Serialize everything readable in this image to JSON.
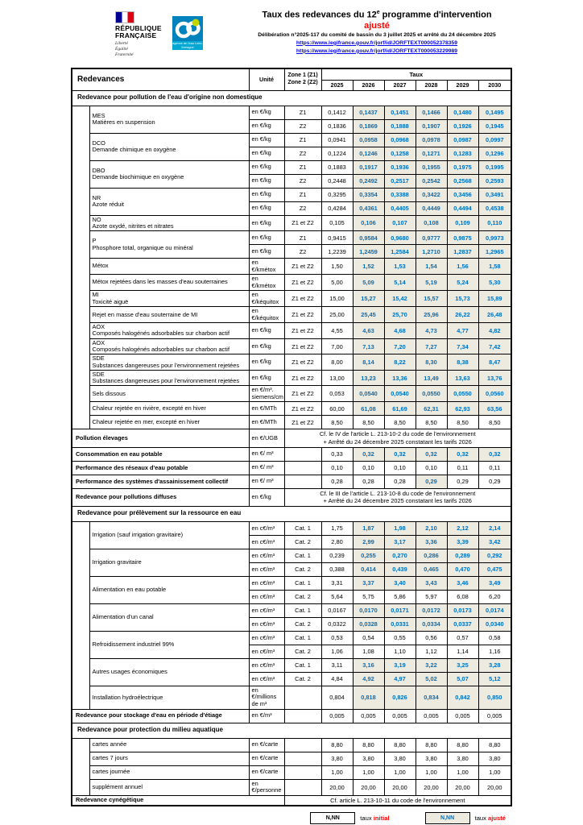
{
  "header": {
    "rf_logo": {
      "line1": "RÉPUBLIQUE",
      "line2": "FRANÇAISE",
      "motto": [
        "Liberté",
        "Égalité",
        "Fraternité"
      ]
    },
    "agency_logo": {
      "name": "agence de l'eau Loire-Bretagne"
    },
    "title_main": "Taux des redevances du 12",
    "title_sup": "e",
    "title_tail": " programme d'intervention",
    "subtitle": "ajusté",
    "deliberation": "Délibération n°2025-117 du comité de bassin du 3 juillet 2025 et arrêté du 24 décembre 2025",
    "links": [
      "https://www.legifrance.gouv.fr/jorf/id/JORFTEXT000052378359",
      "https://www.legifrance.gouv.fr/jorf/id/JORFTEXT000053229989"
    ]
  },
  "table": {
    "col_redevances": "Redevances",
    "col_unite": "Unité",
    "col_zone_line1": "Zone 1 (Z1)",
    "col_zone_line2": "Zone 2 (Z2)",
    "col_taux": "Taux",
    "years": [
      "2025",
      "2026",
      "2027",
      "2028",
      "2029",
      "2030"
    ],
    "rows": [
      {
        "type": "section",
        "label": "Redevance pour pollution de l'eau d'origine non domestique"
      },
      {
        "type": "group",
        "label": "MES",
        "sublabel": "Matières en suspension",
        "rows": [
          {
            "unit": "en €/kg",
            "zone": "Z1",
            "base": "0,1412",
            "values": [
              "0,1437",
              "0,1451",
              "0,1466",
              "0,1480",
              "0,1495"
            ],
            "adj": true
          },
          {
            "unit": "en €/kg",
            "zone": "Z2",
            "base": "0,1836",
            "values": [
              "0,1869",
              "0,1888",
              "0,1907",
              "0,1926",
              "0,1945"
            ],
            "adj": true
          }
        ]
      },
      {
        "type": "group",
        "label": "DCO",
        "sublabel": "Demande chimique en oxygène",
        "rows": [
          {
            "unit": "en €/kg",
            "zone": "Z1",
            "base": "0,0941",
            "values": [
              "0,0958",
              "0,0968",
              "0,0978",
              "0,0987",
              "0,0997"
            ],
            "adj": true
          },
          {
            "unit": "en €/kg",
            "zone": "Z2",
            "base": "0,1224",
            "values": [
              "0,1246",
              "0,1258",
              "0,1271",
              "0,1283",
              "0,1296"
            ],
            "adj": true
          }
        ]
      },
      {
        "type": "group",
        "label": "DBO",
        "sublabel": "Demande biochimique en oxygène",
        "rows": [
          {
            "unit": "en €/kg",
            "zone": "Z1",
            "base": "0,1883",
            "values": [
              "0,1917",
              "0,1936",
              "0,1955",
              "0,1975",
              "0,1995"
            ],
            "adj": true
          },
          {
            "unit": "en €/kg",
            "zone": "Z2",
            "base": "0,2448",
            "values": [
              "0,2492",
              "0,2517",
              "0,2542",
              "0,2568",
              "0,2593"
            ],
            "adj": true
          }
        ]
      },
      {
        "type": "group",
        "label": "NR",
        "sublabel": "Azote réduit",
        "rows": [
          {
            "unit": "en €/kg",
            "zone": "Z1",
            "base": "0,3295",
            "values": [
              "0,3354",
              "0,3388",
              "0,3422",
              "0,3456",
              "0,3491"
            ],
            "adj": true
          },
          {
            "unit": "en €/kg",
            "zone": "Z2",
            "base": "0,4284",
            "values": [
              "0,4361",
              "0,4405",
              "0,4449",
              "0,4494",
              "0,4538"
            ],
            "adj": true
          }
        ]
      },
      {
        "type": "group",
        "label": "NO",
        "sublabel": "Azote oxydé, nitrites et nitrates",
        "rows": [
          {
            "unit": "en €/kg",
            "zone": "Z1 et Z2",
            "base": "0,105",
            "values": [
              "0,106",
              "0,107",
              "0,108",
              "0,109",
              "0,110"
            ],
            "adj": true
          }
        ]
      },
      {
        "type": "group",
        "label": "P",
        "sublabel": "Phosphore total, organique ou minéral",
        "rows": [
          {
            "unit": "en €/kg",
            "zone": "Z1",
            "base": "0,9415",
            "values": [
              "0,9584",
              "0,9680",
              "0,9777",
              "0,9875",
              "0,9973"
            ],
            "adj": true
          },
          {
            "unit": "en €/kg",
            "zone": "Z2",
            "base": "1,2239",
            "values": [
              "1,2459",
              "1,2584",
              "1,2710",
              "1,2837",
              "1,2965"
            ],
            "adj": true
          }
        ]
      },
      {
        "type": "group",
        "label": "Métox",
        "rows": [
          {
            "unit": "en €/kmétox",
            "zone": "Z1 et Z2",
            "base": "1,50",
            "values": [
              "1,52",
              "1,53",
              "1,54",
              "1,56",
              "1,58"
            ],
            "adj": true
          }
        ]
      },
      {
        "type": "group",
        "label": "Métox rejetées dans les masses d'eau souterraines",
        "rows": [
          {
            "unit": "en €/kmétox",
            "zone": "Z1 et Z2",
            "base": "5,00",
            "values": [
              "5,09",
              "5,14",
              "5,19",
              "5,24",
              "5,30"
            ],
            "adj": true
          }
        ]
      },
      {
        "type": "group",
        "label": "MI",
        "sublabel": "Toxicité aiguë",
        "rows": [
          {
            "unit": "en €/kéquitox",
            "zone": "Z1 et Z2",
            "base": "15,00",
            "values": [
              "15,27",
              "15,42",
              "15,57",
              "15,73",
              "15,89"
            ],
            "adj": true
          }
        ]
      },
      {
        "type": "group",
        "label": "Rejet en masse d'eau souterraine de MI",
        "rows": [
          {
            "unit": "en €/kéquitox",
            "zone": "Z1 et Z2",
            "base": "25,00",
            "values": [
              "25,45",
              "25,70",
              "25,96",
              "26,22",
              "26,48"
            ],
            "adj": true
          }
        ]
      },
      {
        "type": "group",
        "label": "AOX",
        "sublabel": "Composés halogénés adsorbables sur charbon actif",
        "rows": [
          {
            "unit": "en €/kg",
            "zone": "Z1 et Z2",
            "base": "4,55",
            "values": [
              "4,63",
              "4,68",
              "4,73",
              "4,77",
              "4,82"
            ],
            "adj": true
          }
        ]
      },
      {
        "type": "group",
        "label": "AOX",
        "sublabel": "Composés halogénés adsorbables sur charbon actif",
        "rows": [
          {
            "unit": "en €/kg",
            "zone": "Z1 et Z2",
            "base": "7,00",
            "values": [
              "7,13",
              "7,20",
              "7,27",
              "7,34",
              "7,42"
            ],
            "adj": true
          }
        ]
      },
      {
        "type": "group",
        "label": "SDE",
        "sublabel": "Substances dangereuses pour l'environnement rejetées",
        "rows": [
          {
            "unit": "en €/kg",
            "zone": "Z1 et Z2",
            "base": "8,00",
            "values": [
              "8,14",
              "8,22",
              "8,30",
              "8,38",
              "8,47"
            ],
            "adj": true
          }
        ]
      },
      {
        "type": "group",
        "label": "SDE",
        "sublabel": "Substances dangereuses pour l'environnement rejetées",
        "rows": [
          {
            "unit": "en €/kg",
            "zone": "Z1 et Z2",
            "base": "13,00",
            "values": [
              "13,23",
              "13,36",
              "13,49",
              "13,63",
              "13,76"
            ],
            "adj": true
          }
        ]
      },
      {
        "type": "group",
        "label": "Sels dissous",
        "rows": [
          {
            "unit": "en €/m³.\nsiemens/cm",
            "zone": "Z1 et Z2",
            "base": "0,053",
            "values": [
              "0,0540",
              "0,0540",
              "0,0550",
              "0,0550",
              "0,0560"
            ],
            "adj": true
          }
        ]
      },
      {
        "type": "group",
        "label": "Chaleur rejetée en rivière, excepté en hiver",
        "rows": [
          {
            "unit": "en €/MTh",
            "zone": "Z1 et Z2",
            "base": "60,00",
            "values": [
              "61,08",
              "61,69",
              "62,31",
              "62,93",
              "63,56"
            ],
            "adj": true
          }
        ]
      },
      {
        "type": "group",
        "label": "Chaleur rejetée en mer, excepté en hiver",
        "rows": [
          {
            "unit": "en €/MTh",
            "zone": "Z1 et Z2",
            "base": "8,50",
            "values": [
              "8,50",
              "8,50",
              "8,50",
              "8,50",
              "8,50"
            ],
            "adj": false
          }
        ]
      },
      {
        "type": "bold",
        "label": "Pollution élevages",
        "unit": "en €/UGB",
        "note": [
          "Cf. le IV de l'article L. 213-10-2 du code de l'environnement",
          "+ Arrêté du 24 décembre 2025 constatant les tarifs 2026"
        ]
      },
      {
        "type": "bold",
        "label": "Consommation en eau potable",
        "unit": "en €/ m³",
        "zone": "",
        "base": "0,33",
        "values": [
          "0,32",
          "0,32",
          "0,32",
          "0,32",
          "0,32"
        ],
        "adj": true
      },
      {
        "type": "bold",
        "label": "Performance des réseaux d'eau potable",
        "unit": "en €/ m³",
        "zone": "",
        "base": "0,10",
        "values": [
          "0,10",
          "0,10",
          "0,10",
          "0,11",
          "0,11"
        ],
        "adj": false
      },
      {
        "type": "bold",
        "label": "Performance des systèmes d'assainissement collectif",
        "unit": "en €/ m³",
        "zone": "",
        "base": "0,28",
        "values": [
          "0,28",
          "0,28",
          "0,29",
          "0,29",
          "0,29"
        ],
        "adj": [
          2
        ]
      },
      {
        "type": "bold",
        "label": "Redevance pour pollutions diffuses",
        "unit": "en €/kg",
        "note": [
          "Cf. le III de l'article L. 213-10-8 du code de l'environnement",
          "+ Arrêté du 24 décembre 2025 constatant les tarifs 2026"
        ]
      },
      {
        "type": "section",
        "label": "Redevance pour prélèvement sur la ressource en eau"
      },
      {
        "type": "group",
        "label": "Irrigation (sauf irrigation gravitaire)",
        "rows": [
          {
            "unit": "en c€/m³",
            "zone": "Cat. 1",
            "base": "1,75",
            "values": [
              "1,87",
              "1,98",
              "2,10",
              "2,12",
              "2,14"
            ],
            "adj": true
          },
          {
            "unit": "en c€/m³",
            "zone": "Cat. 2",
            "base": "2,80",
            "values": [
              "2,99",
              "3,17",
              "3,36",
              "3,39",
              "3,42"
            ],
            "adj": true
          }
        ]
      },
      {
        "type": "group",
        "label": "Irrigation gravitaire",
        "rows": [
          {
            "unit": "en c€/m³",
            "zone": "Cat. 1",
            "base": "0,239",
            "values": [
              "0,255",
              "0,270",
              "0,286",
              "0,289",
              "0,292"
            ],
            "adj": true
          },
          {
            "unit": "en c€/m³",
            "zone": "Cat. 2",
            "base": "0,388",
            "values": [
              "0,414",
              "0,439",
              "0,465",
              "0,470",
              "0,475"
            ],
            "adj": true
          }
        ]
      },
      {
        "type": "group",
        "label": "Alimentation en eau potable",
        "rows": [
          {
            "unit": "en c€/m³",
            "zone": "Cat. 1",
            "base": "3,31",
            "values": [
              "3,37",
              "3,40",
              "3,43",
              "3,46",
              "3,49"
            ],
            "adj": true
          },
          {
            "unit": "en c€/m³",
            "zone": "Cat. 2",
            "base": "5,64",
            "values": [
              "5,75",
              "5,86",
              "5,97",
              "6,08",
              "6,20"
            ],
            "adj": false
          }
        ]
      },
      {
        "type": "group",
        "label": "Alimentation d'un canal",
        "rows": [
          {
            "unit": "en c€/m³",
            "zone": "Cat. 1",
            "base": "0,0167",
            "values": [
              "0,0170",
              "0,0171",
              "0,0172",
              "0,0173",
              "0,0174"
            ],
            "adj": true
          },
          {
            "unit": "en c€/m³",
            "zone": "Cat. 2",
            "base": "0,0322",
            "values": [
              "0,0328",
              "0,0331",
              "0,0334",
              "0,0337",
              "0,0340"
            ],
            "adj": true
          }
        ]
      },
      {
        "type": "group",
        "label": "Refroidissement industriel 99%",
        "rows": [
          {
            "unit": "en c€/m³",
            "zone": "Cat. 1",
            "base": "0,53",
            "values": [
              "0,54",
              "0,55",
              "0,56",
              "0,57",
              "0,58"
            ],
            "adj": false
          },
          {
            "unit": "en c€/m³",
            "zone": "Cat. 2",
            "base": "1,06",
            "values": [
              "1,08",
              "1,10",
              "1,12",
              "1,14",
              "1,16"
            ],
            "adj": false
          }
        ]
      },
      {
        "type": "group",
        "label": "Autres usages économiques",
        "rows": [
          {
            "unit": "en c€/m³",
            "zone": "Cat. 1",
            "base": "3,11",
            "values": [
              "3,16",
              "3,19",
              "3,22",
              "3,25",
              "3,28"
            ],
            "adj": true
          },
          {
            "unit": "en c€/m³",
            "zone": "Cat. 2",
            "base": "4,84",
            "values": [
              "4,92",
              "4,97",
              "5,02",
              "5,07",
              "5,12"
            ],
            "adj": true
          }
        ]
      },
      {
        "type": "group",
        "label": "Installation hydroélectrique",
        "rows": [
          {
            "unit": "en €/millions de m³",
            "zone": "",
            "base": "0,804",
            "values": [
              "0,818",
              "0,826",
              "0,834",
              "0,842",
              "0,850"
            ],
            "adj": true
          }
        ]
      },
      {
        "type": "bold",
        "label": "Redevance pour stockage d'eau en période d'étiage",
        "unit": "en €/m³",
        "zone": "",
        "base": "0,005",
        "values": [
          "0,005",
          "0,005",
          "0,005",
          "0,005",
          "0,005"
        ],
        "adj": false
      },
      {
        "type": "section",
        "label": "Redevance pour protection du milieu aquatique"
      },
      {
        "type": "group",
        "label": "cartes année",
        "rows": [
          {
            "unit": "en €/carte",
            "zone": "",
            "base": "8,80",
            "values": [
              "8,80",
              "8,80",
              "8,80",
              "8,80",
              "8,80"
            ],
            "adj": false
          }
        ]
      },
      {
        "type": "group",
        "label": "cartes 7 jours",
        "rows": [
          {
            "unit": "en €/carte",
            "zone": "",
            "base": "3,80",
            "values": [
              "3,80",
              "3,80",
              "3,80",
              "3,80",
              "3,80"
            ],
            "adj": false
          }
        ]
      },
      {
        "type": "group",
        "label": "cartes journée",
        "rows": [
          {
            "unit": "en €/carte",
            "zone": "",
            "base": "1,00",
            "values": [
              "1,00",
              "1,00",
              "1,00",
              "1,00",
              "1,00"
            ],
            "adj": false
          }
        ]
      },
      {
        "type": "group",
        "label": "supplément annuel",
        "rows": [
          {
            "unit": "en €/personne",
            "zone": "",
            "base": "20,00",
            "values": [
              "20,00",
              "20,00",
              "20,00",
              "20,00",
              "20,00"
            ],
            "adj": false
          }
        ]
      },
      {
        "type": "bold",
        "label": "Redevance cynégétique",
        "note": [
          "Cf. article L. 213-10-11 du code de l'environnement"
        ]
      }
    ]
  },
  "legend": {
    "sample": "N,NN",
    "initial_prefix": "taux ",
    "initial_word": "initial",
    "adjusted_prefix": "taux ",
    "adjusted_word": "ajusté"
  },
  "colors": {
    "adjusted_text": "#0070C0",
    "adjusted_bg": "#EDEADF",
    "accent_red": "#FF0000",
    "link_blue": "#0000EE",
    "logo_blue": "#0082BC"
  }
}
